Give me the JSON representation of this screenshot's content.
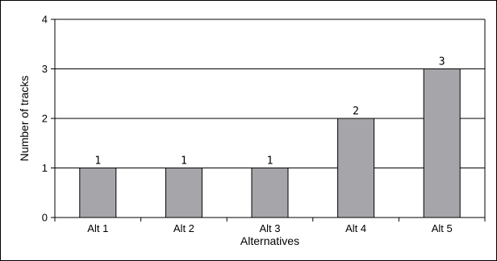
{
  "chart_data": {
    "type": "bar",
    "categories": [
      "Alt 1",
      "Alt 2",
      "Alt 3",
      "Alt 4",
      "Alt 5"
    ],
    "values": [
      1,
      1,
      1,
      2,
      3
    ],
    "data_labels": [
      "1",
      "1",
      "1",
      "2",
      "3"
    ],
    "title": "",
    "xlabel": "Alternatives",
    "ylabel": "Number of tracks",
    "ylim": [
      0,
      4
    ],
    "yticks": [
      0,
      1,
      2,
      3,
      4
    ],
    "ytick_labels": [
      "0",
      "1",
      "2",
      "3",
      "4"
    ],
    "grid": "horizontal",
    "legend": "none",
    "colors": {
      "bar_fill": "#a6a6aa",
      "bar_stroke": "#000000",
      "grid": "#000000",
      "axis": "#000000",
      "background": "#ffffff"
    }
  }
}
